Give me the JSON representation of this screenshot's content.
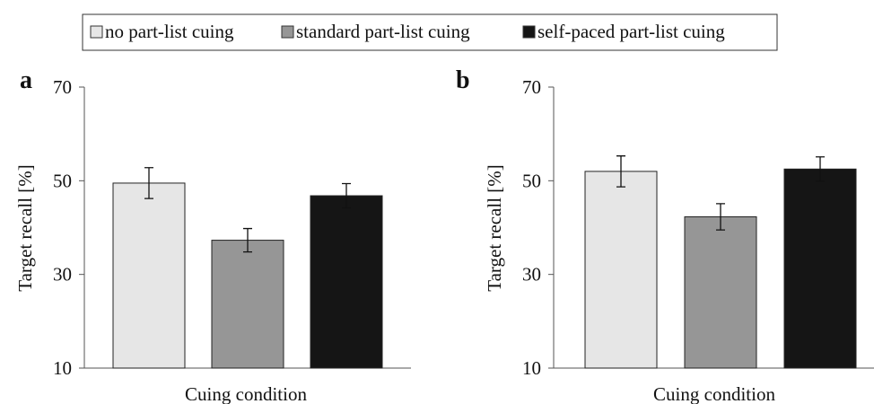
{
  "legend": {
    "items": [
      {
        "label": "no part-list cuing",
        "color": "#e6e6e6"
      },
      {
        "label": "standard part-list cuing",
        "color": "#969696"
      },
      {
        "label": "self-paced part-list cuing",
        "color": "#151515"
      }
    ]
  },
  "chart_data": [
    {
      "type": "bar",
      "panel_label": "a",
      "categories": [
        "no part-list cuing",
        "standard part-list cuing",
        "self-paced part-list cuing"
      ],
      "values": [
        49.5,
        37.3,
        46.8
      ],
      "errors": [
        3.3,
        2.5,
        2.6
      ],
      "colors": [
        "#e6e6e6",
        "#969696",
        "#151515"
      ],
      "title": "",
      "xlabel": "Cuing condition",
      "ylabel": "Target recall [%]",
      "ylim": [
        10,
        70
      ],
      "yticks": [
        10,
        30,
        50,
        70
      ],
      "grid": false,
      "legend_position": "top"
    },
    {
      "type": "bar",
      "panel_label": "b",
      "categories": [
        "no part-list cuing",
        "standard part-list cuing",
        "self-paced part-list cuing"
      ],
      "values": [
        52.0,
        42.3,
        52.5
      ],
      "errors": [
        3.3,
        2.8,
        2.6
      ],
      "colors": [
        "#e6e6e6",
        "#969696",
        "#151515"
      ],
      "title": "",
      "xlabel": "Cuing condition",
      "ylabel": "Target recall [%]",
      "ylim": [
        10,
        70
      ],
      "yticks": [
        10,
        30,
        50,
        70
      ],
      "grid": false,
      "legend_position": "top"
    }
  ]
}
